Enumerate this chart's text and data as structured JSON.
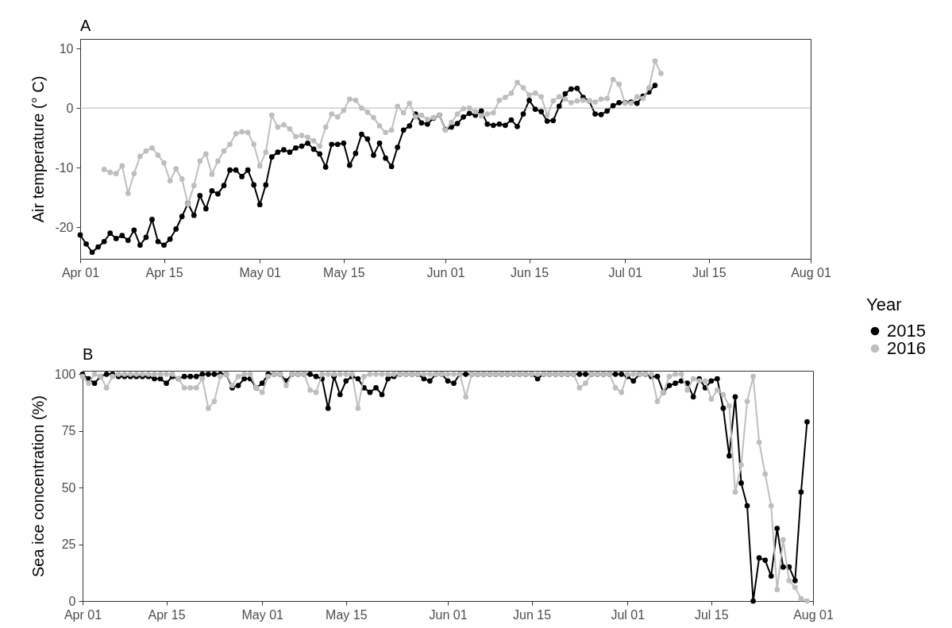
{
  "chart_data": [
    {
      "type": "line",
      "title": "A",
      "ylabel": "Air temperature (° C)",
      "legend_title": "Year",
      "legend": "right",
      "marker": "circle",
      "line_style": "solid",
      "x": [
        "--04-01",
        "--04-02",
        "--04-03",
        "--04-04",
        "--04-05",
        "--04-06",
        "--04-07",
        "--04-08",
        "--04-09",
        "--04-10",
        "--04-11",
        "--04-12",
        "--04-13",
        "--04-14",
        "--04-15",
        "--04-16",
        "--04-17",
        "--04-18",
        "--04-19",
        "--04-20",
        "--04-21",
        "--04-22",
        "--04-23",
        "--04-24",
        "--04-25",
        "--04-26",
        "--04-27",
        "--04-28",
        "--04-29",
        "--04-30",
        "--05-01",
        "--05-02",
        "--05-03",
        "--05-04",
        "--05-05",
        "--05-06",
        "--05-07",
        "--05-08",
        "--05-09",
        "--05-10",
        "--05-11",
        "--05-12",
        "--05-13",
        "--05-14",
        "--05-15",
        "--05-16",
        "--05-17",
        "--05-18",
        "--05-19",
        "--05-20",
        "--05-21",
        "--05-22",
        "--05-23",
        "--05-24",
        "--05-25",
        "--05-26",
        "--05-27",
        "--05-28",
        "--05-29",
        "--05-30",
        "--05-31",
        "--06-01",
        "--06-02",
        "--06-03",
        "--06-04",
        "--06-05",
        "--06-06",
        "--06-07",
        "--06-08",
        "--06-09",
        "--06-10",
        "--06-11",
        "--06-12",
        "--06-13",
        "--06-14",
        "--06-15",
        "--06-16",
        "--06-17",
        "--06-18",
        "--06-19",
        "--06-20",
        "--06-21",
        "--06-22",
        "--06-23",
        "--06-24",
        "--06-25",
        "--06-26",
        "--06-27",
        "--06-28",
        "--06-29",
        "--06-30",
        "--07-01",
        "--07-02",
        "--07-03",
        "--07-04",
        "--07-05",
        "--07-06",
        "--07-07"
      ],
      "series": [
        {
          "name": "2015",
          "color": "#000000",
          "values": [
            -21.3,
            -22.8,
            -24.2,
            -23.3,
            -22.4,
            -21.0,
            -21.9,
            -21.4,
            -22.2,
            -20.5,
            -23.0,
            -21.7,
            -18.7,
            -22.4,
            -23.0,
            -22.0,
            -20.3,
            -18.2,
            -16.0,
            -18.0,
            -14.7,
            -16.9,
            -13.9,
            -14.4,
            -13.0,
            -10.4,
            -10.4,
            -11.5,
            -10.4,
            -12.9,
            -16.2,
            -12.9,
            -8.2,
            -7.4,
            -7.0,
            -7.4,
            -6.7,
            -6.4,
            -5.9,
            -6.9,
            -7.7,
            -9.9,
            -6.1,
            -6.1,
            -5.9,
            -9.6,
            -7.6,
            -4.4,
            -5.2,
            -7.9,
            -5.9,
            -8.4,
            -9.8,
            -6.6,
            -3.7,
            -3.0,
            -1.0,
            -2.5,
            -2.7,
            -1.7,
            -1.2,
            -3.6,
            -3.2,
            -2.6,
            -1.5,
            -0.9,
            -1.2,
            -0.5,
            -2.7,
            -2.9,
            -2.7,
            -2.9,
            -2.0,
            -3.1,
            -1.0,
            1.3,
            -0.2,
            -0.6,
            -2.2,
            -2.1,
            0.3,
            2.4,
            3.2,
            3.3,
            1.8,
            1.2,
            -1.0,
            -1.1,
            -0.5,
            0.4,
            0.9,
            0.9,
            1.0,
            0.8,
            2.0,
            2.7,
            3.8,
            null
          ]
        },
        {
          "name": "2016",
          "color": "#bebebe",
          "values": [
            null,
            null,
            null,
            null,
            -10.3,
            -10.8,
            -11.0,
            -9.7,
            -14.3,
            -11.0,
            -8.1,
            -7.2,
            -6.7,
            -7.9,
            -9.2,
            -12.2,
            -10.2,
            -11.9,
            -16.1,
            -13.0,
            -8.9,
            -7.7,
            -11.1,
            -8.9,
            -7.2,
            -6.1,
            -4.3,
            -4.0,
            -4.1,
            -6.1,
            -9.7,
            -7.4,
            -1.2,
            -3.2,
            -2.8,
            -3.5,
            -4.8,
            -4.6,
            -4.9,
            -5.5,
            -6.4,
            -3.2,
            -1.0,
            -1.5,
            -0.4,
            1.5,
            1.3,
            0.0,
            -0.7,
            -1.6,
            -3.0,
            -4.1,
            -3.7,
            0.3,
            -0.8,
            0.8,
            -1.5,
            -1.2,
            -1.9,
            -1.6,
            -1.2,
            -3.7,
            -2.4,
            -1.0,
            -0.1,
            0.0,
            -0.6,
            -1.3,
            -1.0,
            -0.8,
            1.3,
            1.8,
            2.5,
            4.3,
            3.4,
            2.2,
            2.5,
            1.9,
            -1.2,
            1.2,
            1.9,
            1.5,
            0.9,
            1.2,
            1.3,
            1.2,
            1.0,
            1.5,
            1.6,
            4.8,
            4.0,
            0.8,
            0.8,
            1.9,
            1.6,
            3.4,
            7.9,
            5.8
          ]
        }
      ],
      "xlim": [
        "--04-01",
        "--08-01"
      ],
      "xticks": [
        {
          "value": "--04-01",
          "label": "Apr 01"
        },
        {
          "value": "--04-15",
          "label": "Apr 15"
        },
        {
          "value": "--05-01",
          "label": "May 01"
        },
        {
          "value": "--05-15",
          "label": "May 15"
        },
        {
          "value": "--06-01",
          "label": "Jun 01"
        },
        {
          "value": "--06-15",
          "label": "Jun 15"
        },
        {
          "value": "--07-01",
          "label": "Jul 01"
        },
        {
          "value": "--07-15",
          "label": "Jul 15"
        },
        {
          "value": "--08-01",
          "label": "Aug 01"
        }
      ],
      "ylim": [
        -25.3,
        11.6
      ],
      "yticks": [
        -20,
        -10,
        0,
        10
      ],
      "ref_lines": [
        {
          "axis": "y",
          "value": 0,
          "color": "#b3b3b3"
        }
      ]
    },
    {
      "type": "line",
      "title": "B",
      "ylabel": "Sea ice concentration (%)",
      "marker": "circle",
      "line_style": "solid",
      "x": [
        "--04-01",
        "--04-02",
        "--04-03",
        "--04-04",
        "--04-05",
        "--04-06",
        "--04-07",
        "--04-08",
        "--04-09",
        "--04-10",
        "--04-11",
        "--04-12",
        "--04-13",
        "--04-14",
        "--04-15",
        "--04-16",
        "--04-17",
        "--04-18",
        "--04-19",
        "--04-20",
        "--04-21",
        "--04-22",
        "--04-23",
        "--04-24",
        "--04-25",
        "--04-26",
        "--04-27",
        "--04-28",
        "--04-29",
        "--04-30",
        "--05-01",
        "--05-02",
        "--05-03",
        "--05-04",
        "--05-05",
        "--05-06",
        "--05-07",
        "--05-08",
        "--05-09",
        "--05-10",
        "--05-11",
        "--05-12",
        "--05-13",
        "--05-14",
        "--05-15",
        "--05-16",
        "--05-17",
        "--05-18",
        "--05-19",
        "--05-20",
        "--05-21",
        "--05-22",
        "--05-23",
        "--05-24",
        "--05-25",
        "--05-26",
        "--05-27",
        "--05-28",
        "--05-29",
        "--05-30",
        "--05-31",
        "--06-01",
        "--06-02",
        "--06-03",
        "--06-04",
        "--06-05",
        "--06-06",
        "--06-07",
        "--06-08",
        "--06-09",
        "--06-10",
        "--06-11",
        "--06-12",
        "--06-13",
        "--06-14",
        "--06-15",
        "--06-16",
        "--06-17",
        "--06-18",
        "--06-19",
        "--06-20",
        "--06-21",
        "--06-22",
        "--06-23",
        "--06-24",
        "--06-25",
        "--06-26",
        "--06-27",
        "--06-28",
        "--06-29",
        "--06-30",
        "--07-01",
        "--07-02",
        "--07-03",
        "--07-04",
        "--07-05",
        "--07-06",
        "--07-07",
        "--07-08",
        "--07-09",
        "--07-10",
        "--07-11",
        "--07-12",
        "--07-13",
        "--07-14",
        "--07-15",
        "--07-16",
        "--07-17",
        "--07-18",
        "--07-19",
        "--07-20",
        "--07-21",
        "--07-22",
        "--07-23",
        "--07-24",
        "--07-25",
        "--07-26",
        "--07-27",
        "--07-28",
        "--07-29",
        "--07-30",
        "--07-31"
      ],
      "series": [
        {
          "name": "2015",
          "color": "#000000",
          "values": [
            100,
            98,
            96,
            99,
            100,
            100,
            99,
            99,
            99,
            99,
            99,
            99,
            98,
            98,
            96,
            99,
            98,
            99,
            99,
            99,
            100,
            100,
            100,
            100,
            100,
            94,
            95,
            98,
            98,
            94,
            96,
            100,
            100,
            100,
            97,
            100,
            100,
            100,
            100,
            99,
            98,
            85,
            99,
            91,
            97,
            99,
            98,
            94,
            92,
            94,
            91,
            98,
            99,
            100,
            100,
            100,
            100,
            98,
            97,
            100,
            100,
            97,
            96,
            100,
            100,
            100,
            100,
            100,
            100,
            100,
            100,
            100,
            100,
            100,
            100,
            100,
            98,
            100,
            100,
            100,
            100,
            100,
            100,
            100,
            100,
            100,
            100,
            100,
            100,
            100,
            100,
            99,
            97,
            100,
            100,
            99,
            99,
            92,
            95,
            96,
            97,
            96,
            90,
            98,
            94,
            97,
            98,
            85,
            64,
            90,
            52,
            42,
            0,
            19,
            18,
            11,
            32,
            15,
            15,
            9,
            48,
            79
          ]
        },
        {
          "name": "2016",
          "color": "#bebebe",
          "values": [
            99,
            96,
            100,
            99,
            94,
            99,
            100,
            100,
            100,
            100,
            100,
            100,
            100,
            100,
            100,
            100,
            98,
            94,
            94,
            94,
            98,
            85,
            88,
            99,
            100,
            95,
            99,
            100,
            100,
            94,
            92,
            99,
            100,
            100,
            95,
            100,
            100,
            100,
            93,
            92,
            100,
            100,
            100,
            100,
            100,
            100,
            85,
            99,
            100,
            100,
            100,
            100,
            100,
            100,
            100,
            100,
            100,
            100,
            100,
            100,
            100,
            100,
            100,
            100,
            90,
            100,
            100,
            100,
            100,
            100,
            100,
            100,
            100,
            100,
            100,
            100,
            100,
            100,
            100,
            100,
            100,
            100,
            100,
            94,
            96,
            100,
            100,
            100,
            100,
            94,
            92,
            100,
            100,
            100,
            100,
            100,
            88,
            92,
            99,
            100,
            100,
            93,
            98,
            97,
            97,
            89,
            93,
            91,
            86,
            48,
            60,
            88,
            99,
            70,
            56,
            42,
            5,
            27,
            9,
            6,
            1,
            0
          ]
        }
      ],
      "xlim": [
        "--04-01",
        "--08-01"
      ],
      "xticks": [
        {
          "value": "--04-01",
          "label": "Apr 01"
        },
        {
          "value": "--04-15",
          "label": "Apr 15"
        },
        {
          "value": "--05-01",
          "label": "May 01"
        },
        {
          "value": "--05-15",
          "label": "May 15"
        },
        {
          "value": "--06-01",
          "label": "Jun 01"
        },
        {
          "value": "--06-15",
          "label": "Jun 15"
        },
        {
          "value": "--07-01",
          "label": "Jul 01"
        },
        {
          "value": "--07-15",
          "label": "Jul 15"
        },
        {
          "value": "--08-01",
          "label": "Aug 01"
        }
      ],
      "ylim": [
        0,
        101.5
      ],
      "yticks": [
        0,
        25,
        50,
        75,
        100
      ]
    }
  ]
}
